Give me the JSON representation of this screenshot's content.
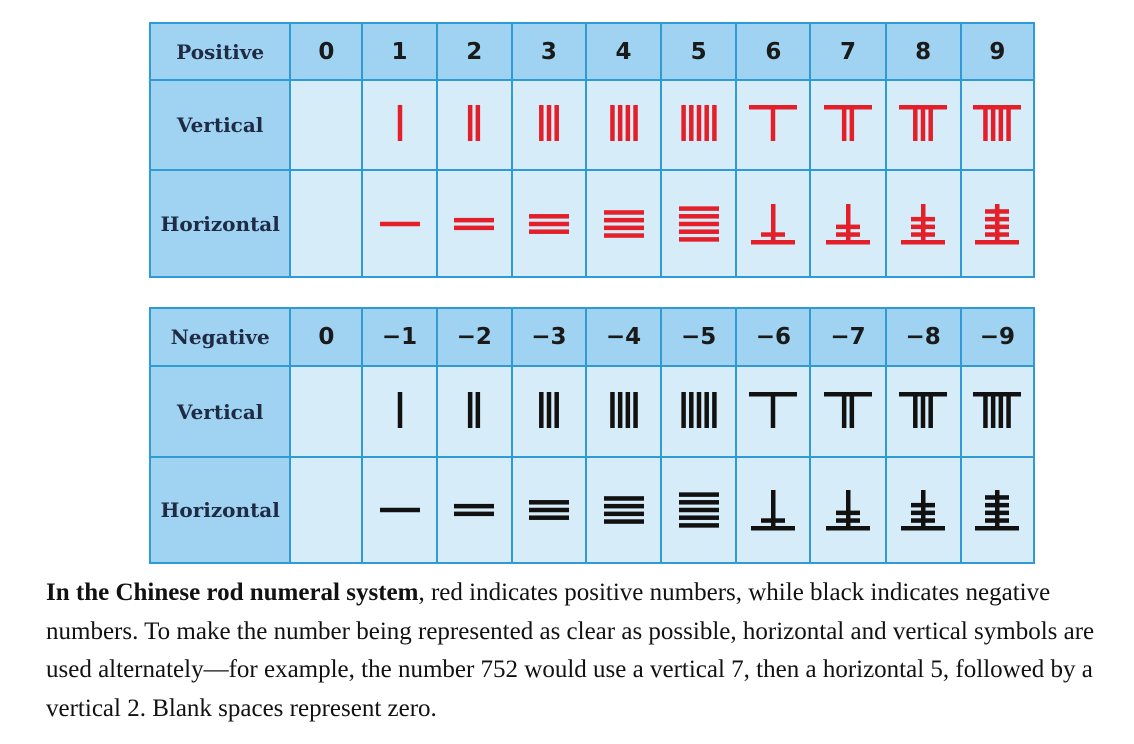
{
  "colors": {
    "positive": "#e3202a",
    "negative": "#111111",
    "header_bg": "#9fd3f1",
    "cell_bg": "#d6edf9",
    "border": "#2e9bd6"
  },
  "positive_table": {
    "header_label": "Positive",
    "values": [
      "0",
      "1",
      "2",
      "3",
      "4",
      "5",
      "6",
      "7",
      "8",
      "9"
    ],
    "vertical_label": "Vertical",
    "horizontal_label": "Horizontal"
  },
  "negative_table": {
    "header_label": "Negative",
    "values": [
      "0",
      "−1",
      "−2",
      "−3",
      "−4",
      "−5",
      "−6",
      "−7",
      "−8",
      "−9"
    ],
    "vertical_label": "Vertical",
    "horizontal_label": "Horizontal"
  },
  "rod_digits": [
    1,
    2,
    3,
    4,
    5,
    6,
    7,
    8,
    9
  ],
  "caption": {
    "bold_lead": "In the Chinese rod numeral system",
    "text": ", red indicates positive numbers, while black indicates negative numbers. To make the number being represented as clear as possible, horizontal and vertical symbols are used alternately—for example, the number 752 would use a vertical 7, then a horizontal 5, followed by a vertical 2. Blank spaces represent zero."
  }
}
